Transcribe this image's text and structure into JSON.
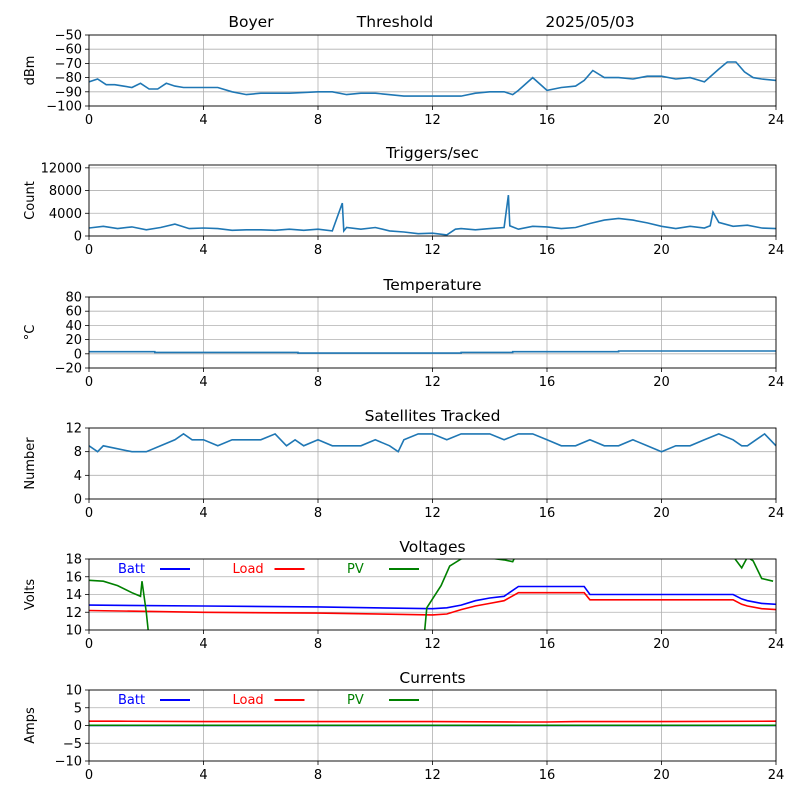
{
  "header": {
    "station": "Boyer",
    "label": "Threshold",
    "date": "2025/05/03"
  },
  "chart_data": [
    {
      "type": "line",
      "title": "",
      "ylabel": "dBm",
      "xlim": [
        0,
        24
      ],
      "ylim": [
        -100,
        -50
      ],
      "xticks": [
        0,
        4,
        8,
        12,
        16,
        20,
        24
      ],
      "xtick_labels": [
        "0",
        "4",
        "8",
        "12",
        "16",
        "20",
        "24"
      ],
      "yticks": [
        -100,
        -90,
        -80,
        -70,
        -60,
        -50
      ],
      "ytick_labels": [
        "−100",
        "−90",
        "−80",
        "−70",
        "−60",
        "−50"
      ],
      "grid": true,
      "series": [
        {
          "color": "#1f77b4",
          "x": [
            0,
            0.3,
            0.6,
            0.9,
            1.2,
            1.5,
            1.8,
            2.1,
            2.4,
            2.7,
            3.0,
            3.3,
            3.6,
            3.9,
            4.5,
            5.0,
            5.5,
            6.0,
            7.0,
            8.0,
            8.5,
            9.0,
            9.5,
            10.0,
            11.0,
            12.0,
            12.5,
            13.0,
            13.5,
            14.0,
            14.5,
            14.8,
            15.0,
            15.5,
            16.0,
            16.5,
            17.0,
            17.3,
            17.6,
            18.0,
            18.5,
            19.0,
            19.5,
            20.0,
            20.5,
            21.0,
            21.5,
            22.0,
            22.3,
            22.6,
            22.9,
            23.2,
            23.5,
            24.0
          ],
          "y": [
            -83,
            -81,
            -85,
            -85,
            -86,
            -87,
            -84,
            -88,
            -88,
            -84,
            -86,
            -87,
            -87,
            -87,
            -87,
            -90,
            -92,
            -91,
            -91,
            -90,
            -90,
            -92,
            -91,
            -91,
            -93,
            -93,
            -93,
            -93,
            -91,
            -90,
            -90,
            -92,
            -89,
            -80,
            -89,
            -87,
            -86,
            -82,
            -75,
            -80,
            -80,
            -81,
            -79,
            -79,
            -81,
            -80,
            -83,
            -74,
            -69,
            -69,
            -76,
            -80,
            -81,
            -82
          ]
        }
      ]
    },
    {
      "type": "line",
      "title": "Triggers/sec",
      "ylabel": "Count",
      "xlim": [
        0,
        24
      ],
      "ylim": [
        0,
        12500
      ],
      "xticks": [
        0,
        4,
        8,
        12,
        16,
        20,
        24
      ],
      "xtick_labels": [
        "0",
        "4",
        "8",
        "12",
        "16",
        "20",
        "24"
      ],
      "yticks": [
        0,
        4000,
        8000,
        12000
      ],
      "ytick_labels": [
        "0",
        "4000",
        "8000",
        "12000"
      ],
      "grid": true,
      "series": [
        {
          "color": "#1f77b4",
          "x": [
            0,
            0.5,
            1,
            1.5,
            2,
            2.5,
            3,
            3.5,
            4,
            4.5,
            5,
            5.5,
            6,
            6.5,
            7,
            7.5,
            8,
            8.5,
            8.85,
            8.9,
            9,
            9.5,
            10,
            10.5,
            11,
            11.5,
            12,
            12.5,
            12.8,
            13,
            13.5,
            14,
            14.5,
            14.65,
            14.7,
            15,
            15.5,
            16,
            16.5,
            17,
            17.5,
            18,
            18.5,
            19,
            19.5,
            20,
            20.5,
            21,
            21.5,
            21.7,
            21.8,
            22,
            22.5,
            23,
            23.5,
            24
          ],
          "y": [
            1400,
            1700,
            1300,
            1600,
            1100,
            1500,
            2100,
            1300,
            1400,
            1300,
            1000,
            1100,
            1100,
            1000,
            1200,
            1000,
            1200,
            900,
            5800,
            900,
            1500,
            1200,
            1500,
            900,
            700,
            400,
            500,
            200,
            1200,
            1300,
            1100,
            1300,
            1500,
            7200,
            1800,
            1200,
            1700,
            1600,
            1300,
            1500,
            2200,
            2800,
            3100,
            2800,
            2300,
            1700,
            1300,
            1700,
            1400,
            1800,
            4200,
            2400,
            1700,
            1900,
            1400,
            1300
          ]
        }
      ]
    },
    {
      "type": "line",
      "title": "Temperature",
      "ylabel": "°C",
      "xlim": [
        0,
        24
      ],
      "ylim": [
        -20,
        80
      ],
      "xticks": [
        0,
        4,
        8,
        12,
        16,
        20,
        24
      ],
      "xtick_labels": [
        "0",
        "4",
        "8",
        "12",
        "16",
        "20",
        "24"
      ],
      "yticks": [
        -20,
        0,
        20,
        40,
        60,
        80
      ],
      "ytick_labels": [
        "−20",
        "0",
        "20",
        "40",
        "60",
        "80"
      ],
      "grid": true,
      "series": [
        {
          "color": "#1f77b4",
          "x": [
            0,
            2.3,
            2.3,
            7.3,
            7.3,
            13,
            13,
            14.8,
            14.8,
            18.5,
            18.5,
            24
          ],
          "y": [
            3,
            3,
            2,
            2,
            1,
            1,
            2,
            2,
            3,
            3,
            4,
            4
          ]
        }
      ]
    },
    {
      "type": "line",
      "title": "Satellites Tracked",
      "ylabel": "Number",
      "xlim": [
        0,
        24
      ],
      "ylim": [
        0,
        12
      ],
      "xticks": [
        0,
        4,
        8,
        12,
        16,
        20,
        24
      ],
      "xtick_labels": [
        "0",
        "4",
        "8",
        "12",
        "16",
        "20",
        "24"
      ],
      "yticks": [
        0,
        4,
        8,
        12
      ],
      "ytick_labels": [
        "0",
        "4",
        "8",
        "12"
      ],
      "grid": true,
      "series": [
        {
          "color": "#1f77b4",
          "x": [
            0,
            0.3,
            0.5,
            1.5,
            2,
            2.5,
            3,
            3.3,
            3.6,
            4,
            4.5,
            5,
            5.5,
            6,
            6.5,
            6.9,
            7.2,
            7.5,
            8,
            8.5,
            9,
            9.5,
            10,
            10.5,
            10.8,
            11,
            11.5,
            12,
            12.5,
            13,
            13.5,
            14,
            14.5,
            15,
            15.5,
            16,
            16.5,
            17,
            17.5,
            18,
            18.5,
            19,
            19.5,
            20,
            20.5,
            21,
            21.5,
            22,
            22.5,
            22.8,
            23,
            23.3,
            23.6,
            24
          ],
          "y": [
            9,
            8,
            9,
            8,
            8,
            9,
            10,
            11,
            10,
            10,
            9,
            10,
            10,
            10,
            11,
            9,
            10,
            9,
            10,
            9,
            9,
            9,
            10,
            9,
            8,
            10,
            11,
            11,
            10,
            11,
            11,
            11,
            10,
            11,
            11,
            10,
            9,
            9,
            10,
            9,
            9,
            10,
            9,
            8,
            9,
            9,
            10,
            11,
            10,
            9,
            9,
            10,
            11,
            9
          ]
        }
      ]
    },
    {
      "type": "line",
      "title": "Voltages",
      "ylabel": "Volts",
      "xlim": [
        0,
        24
      ],
      "ylim": [
        10,
        18
      ],
      "xticks": [
        0,
        4,
        8,
        12,
        16,
        20,
        24
      ],
      "xtick_labels": [
        "0",
        "4",
        "8",
        "12",
        "16",
        "20",
        "24"
      ],
      "yticks": [
        10,
        12,
        14,
        16,
        18
      ],
      "ytick_labels": [
        "10",
        "12",
        "14",
        "16",
        "18"
      ],
      "grid": true,
      "legend": "top-left",
      "series": [
        {
          "name": "Batt",
          "color": "#0000ff",
          "x": [
            0,
            4,
            8,
            12,
            12.5,
            13,
            13.5,
            14,
            14.5,
            15,
            16,
            17,
            17.3,
            17.5,
            20,
            22,
            22.5,
            22.8,
            23,
            23.5,
            24
          ],
          "y": [
            12.8,
            12.7,
            12.6,
            12.4,
            12.5,
            12.8,
            13.3,
            13.6,
            13.8,
            14.9,
            14.9,
            14.9,
            14.9,
            14.0,
            14.0,
            14.0,
            14.0,
            13.5,
            13.3,
            13.0,
            12.9
          ]
        },
        {
          "name": "Load",
          "color": "#ff0000",
          "x": [
            0,
            4,
            8,
            12,
            12.5,
            13,
            13.5,
            14,
            14.5,
            15,
            16,
            17,
            17.3,
            17.5,
            20,
            22,
            22.5,
            22.8,
            23,
            23.5,
            24
          ],
          "y": [
            12.2,
            12.0,
            11.9,
            11.7,
            11.8,
            12.3,
            12.7,
            13.0,
            13.3,
            14.2,
            14.2,
            14.2,
            14.2,
            13.4,
            13.4,
            13.4,
            13.4,
            12.9,
            12.7,
            12.4,
            12.3
          ]
        },
        {
          "name": "PV",
          "color": "#008000",
          "x": [
            0,
            0.5,
            1,
            1.5,
            1.8,
            1.85,
            2,
            2.1,
            11.7,
            11.8,
            12,
            12.3,
            12.6,
            13,
            13.5,
            14,
            14.5,
            14.8,
            15,
            22,
            22.5,
            22.8,
            23,
            23.2,
            23.5,
            23.9
          ],
          "y": [
            15.6,
            15.5,
            15.0,
            14.2,
            13.8,
            15.5,
            12,
            9,
            9,
            12.5,
            13.5,
            15.0,
            17.2,
            18.0,
            18.5,
            18.1,
            17.9,
            17.7,
            19,
            19,
            18.3,
            17.0,
            18.2,
            17.8,
            15.8,
            15.5
          ]
        }
      ]
    },
    {
      "type": "line",
      "title": "Currents",
      "ylabel": "Amps",
      "xlim": [
        0,
        24
      ],
      "ylim": [
        -10,
        10
      ],
      "xticks": [
        0,
        4,
        8,
        12,
        16,
        20,
        24
      ],
      "xtick_labels": [
        "0",
        "4",
        "8",
        "12",
        "16",
        "20",
        "24"
      ],
      "yticks": [
        -10,
        -5,
        0,
        5,
        10
      ],
      "ytick_labels": [
        "−10",
        "−5",
        "0",
        "5",
        "10"
      ],
      "grid": true,
      "legend": "top-left",
      "series": [
        {
          "name": "Batt",
          "color": "#0000ff",
          "x": [
            0,
            24
          ],
          "y": [
            0.0,
            0.0
          ]
        },
        {
          "name": "Load",
          "color": "#ff0000",
          "x": [
            0,
            1,
            4,
            8,
            12,
            15,
            16,
            17,
            20,
            24
          ],
          "y": [
            1.2,
            1.2,
            1.1,
            1.1,
            1.1,
            1.0,
            1.0,
            1.1,
            1.1,
            1.2
          ]
        },
        {
          "name": "PV",
          "color": "#008000",
          "x": [
            0,
            24
          ],
          "y": [
            0.05,
            0.05
          ]
        }
      ]
    }
  ]
}
